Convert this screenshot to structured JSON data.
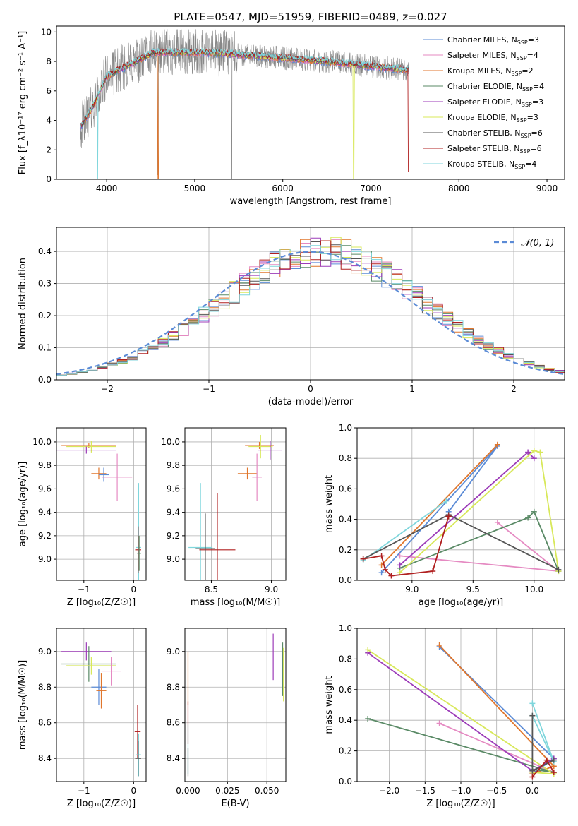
{
  "chart_data": [
    {
      "type": "line",
      "title": "PLATE=0547, MJD=51959, FIBERID=0489, z=0.027",
      "xlabel": "wavelength [Angstrom, rest frame]",
      "ylabel": "Flux [f_λ10⁻¹⁷ erg cm⁻² s⁻¹ A⁻¹]",
      "xlim": [
        3430,
        9200
      ],
      "ylim": [
        0,
        10.4
      ],
      "xticks": [
        "4000",
        "5000",
        "6000",
        "7000",
        "8000",
        "9000"
      ],
      "yticks": [
        "0",
        "2",
        "4",
        "6",
        "8",
        "10"
      ],
      "data_range": [
        3700,
        7430
      ],
      "grid": false,
      "legend_position": "upper-right",
      "series": [
        {
          "name": "Chabrier MILES, N_SSP=3",
          "color": "#5b8bd6"
        },
        {
          "name": "Salpeter MILES, N_SSP=4",
          "color": "#e58ac2"
        },
        {
          "name": "Kroupa MILES, N_SSP=2",
          "color": "#e0762c"
        },
        {
          "name": "Chabrier ELODIE, N_SSP=4",
          "color": "#5a8a66"
        },
        {
          "name": "Salpeter ELODIE, N_SSP=3",
          "color": "#9c3bb8"
        },
        {
          "name": "Kroupa ELODIE, N_SSP=3",
          "color": "#d8e85a"
        },
        {
          "name": "Chabrier STELIB, N_SSP=6",
          "color": "#555555"
        },
        {
          "name": "Salpeter STELIB, N_SSP=6",
          "color": "#b02020"
        },
        {
          "name": "Kroupa STELIB, N_SSP=4",
          "color": "#7fd6dc"
        }
      ]
    },
    {
      "type": "line",
      "xlabel": "(data-model)/error",
      "ylabel": "Normed distribution",
      "xlim": [
        -2.5,
        2.5
      ],
      "ylim": [
        0,
        0.475
      ],
      "xticks": [
        "−2",
        "−1",
        "0",
        "1",
        "2"
      ],
      "yticks": [
        "0.0",
        "0.1",
        "0.2",
        "0.3",
        "0.4"
      ],
      "grid": true,
      "legend_position": "upper-right",
      "reference_curve": {
        "label": "𝒩(0, 1)",
        "mean": 0,
        "sigma": 1,
        "style": "dashed",
        "color": "#5b8bd6"
      },
      "histogram_bin_width": 0.1
    },
    {
      "type": "scatter",
      "xlabel": "Z [log₁₀(Z/Z☉)]",
      "ylabel": "age  [log₁₀(age/yr)]",
      "xlim": [
        -1.55,
        0.25
      ],
      "ylim": [
        8.82,
        10.12
      ],
      "xticks": [
        "−1",
        "0"
      ],
      "yticks": [
        "9.0",
        "9.2",
        "9.4",
        "9.6",
        "9.8",
        "10.0"
      ],
      "grid": true,
      "error_bars": [
        {
          "x": -0.9,
          "y": 9.97,
          "xerr": 0.55,
          "yerr": 0.02,
          "color": "#e0762c"
        },
        {
          "x": -0.85,
          "y": 9.96,
          "xerr": 0.5,
          "yerr": 0.05,
          "color": "#d8e85a"
        },
        {
          "x": -0.95,
          "y": 9.93,
          "xerr": 0.6,
          "yerr": 0.03,
          "color": "#9c3bb8"
        },
        {
          "x": -0.7,
          "y": 9.73,
          "xerr": 0.15,
          "yerr": 0.05,
          "color": "#e0762c"
        },
        {
          "x": -0.6,
          "y": 9.72,
          "xerr": 0.1,
          "yerr": 0.06,
          "color": "#5b8bd6"
        },
        {
          "x": -0.33,
          "y": 9.7,
          "xerr": 0.3,
          "yerr": 0.2,
          "color": "#e58ac2"
        },
        {
          "x": 0.1,
          "y": 9.1,
          "xerr": 0.05,
          "yerr": 0.55,
          "color": "#7fd6dc"
        },
        {
          "x": 0.09,
          "y": 9.08,
          "xerr": 0.06,
          "yerr": 0.2,
          "color": "#b02020"
        },
        {
          "x": 0.11,
          "y": 9.05,
          "xerr": 0.04,
          "yerr": 0.15,
          "color": "#5a8a66"
        }
      ]
    },
    {
      "type": "scatter",
      "xlabel": "mass [log₁₀(M/M☉)]",
      "ylabel": "",
      "xlim": [
        8.28,
        9.12
      ],
      "ylim": [
        8.82,
        10.12
      ],
      "xticks": [
        "8.5",
        "9.0"
      ],
      "yticks": [
        "9.0",
        "9.2",
        "9.4",
        "9.6",
        "9.8",
        "10.0"
      ],
      "grid": true,
      "error_bars": [
        {
          "x": 8.9,
          "y": 9.97,
          "xerr": 0.12,
          "yerr": 0.03,
          "color": "#e0762c"
        },
        {
          "x": 8.91,
          "y": 9.96,
          "xerr": 0.1,
          "yerr": 0.1,
          "color": "#d8e85a"
        },
        {
          "x": 8.99,
          "y": 9.93,
          "xerr": 0.1,
          "yerr": 0.08,
          "color": "#9c3bb8"
        },
        {
          "x": 8.8,
          "y": 9.73,
          "xerr": 0.08,
          "yerr": 0.05,
          "color": "#e0762c"
        },
        {
          "x": 8.88,
          "y": 9.7,
          "xerr": 0.04,
          "yerr": 0.2,
          "color": "#e58ac2"
        },
        {
          "x": 8.41,
          "y": 9.1,
          "xerr": 0.1,
          "yerr": 0.55,
          "color": "#7fd6dc"
        },
        {
          "x": 8.55,
          "y": 9.08,
          "xerr": 0.15,
          "yerr": 0.48,
          "color": "#b02020"
        },
        {
          "x": 8.45,
          "y": 9.09,
          "xerr": 0.08,
          "yerr": 0.3,
          "color": "#555555"
        }
      ]
    },
    {
      "type": "line",
      "xlabel": "age  [log₁₀(age/yr)]",
      "ylabel": "mass weight",
      "xlim": [
        8.55,
        10.25
      ],
      "ylim": [
        0,
        1.0
      ],
      "xticks": [
        "9.0",
        "9.5",
        "10.0"
      ],
      "yticks": [
        "0.0",
        "0.2",
        "0.4",
        "0.6",
        "0.8",
        "1.0"
      ],
      "grid": true,
      "series": [
        {
          "color": "#5b8bd6",
          "x": [
            9.3,
            9.7,
            8.75
          ],
          "y": [
            0.45,
            0.88,
            0.05
          ]
        },
        {
          "color": "#e0762c",
          "x": [
            8.75,
            9.7
          ],
          "y": [
            0.1,
            0.89
          ]
        },
        {
          "color": "#e58ac2",
          "x": [
            9.7,
            10.2,
            8.9
          ],
          "y": [
            0.38,
            0.06,
            0.16
          ]
        },
        {
          "color": "#5a8a66",
          "x": [
            8.9,
            9.95,
            10.0,
            10.2
          ],
          "y": [
            0.08,
            0.41,
            0.45,
            0.06
          ]
        },
        {
          "color": "#9c3bb8",
          "x": [
            8.9,
            9.95,
            10.0
          ],
          "y": [
            0.1,
            0.84,
            0.8
          ]
        },
        {
          "color": "#d8e85a",
          "x": [
            8.9,
            10.0,
            10.05,
            10.2
          ],
          "y": [
            0.05,
            0.85,
            0.84,
            0.06
          ]
        },
        {
          "color": "#7fd6dc",
          "x": [
            8.6,
            9.28
          ],
          "y": [
            0.13,
            0.52
          ]
        },
        {
          "color": "#555555",
          "x": [
            8.6,
            9.3,
            10.2
          ],
          "y": [
            0.14,
            0.43,
            0.07
          ]
        },
        {
          "color": "#b02020",
          "x": [
            8.6,
            8.75,
            8.78,
            8.83,
            9.17,
            9.3
          ],
          "y": [
            0.14,
            0.16,
            0.07,
            0.03,
            0.06,
            0.42
          ]
        }
      ]
    },
    {
      "type": "scatter",
      "xlabel": "Z [log₁₀(Z/Z☉)]",
      "ylabel": "mass [log₁₀(M/M☉)]",
      "xlim": [
        -1.55,
        0.25
      ],
      "ylim": [
        8.27,
        9.13
      ],
      "xticks": [
        "−1",
        "0"
      ],
      "yticks": [
        "8.4",
        "8.6",
        "8.8",
        "9.0"
      ],
      "grid": true,
      "error_bars": [
        {
          "x": -0.95,
          "y": 9.0,
          "xerr": 0.5,
          "yerr": 0.05,
          "color": "#9c3bb8"
        },
        {
          "x": -0.9,
          "y": 8.93,
          "xerr": 0.55,
          "yerr": 0.1,
          "color": "#5a8a66"
        },
        {
          "x": -0.85,
          "y": 8.92,
          "xerr": 0.5,
          "yerr": 0.05,
          "color": "#d8e85a"
        },
        {
          "x": -0.45,
          "y": 8.89,
          "xerr": 0.2,
          "yerr": 0.08,
          "color": "#e58ac2"
        },
        {
          "x": -0.7,
          "y": 8.8,
          "xerr": 0.15,
          "yerr": 0.1,
          "color": "#5b8bd6"
        },
        {
          "x": -0.65,
          "y": 8.78,
          "xerr": 0.1,
          "yerr": 0.1,
          "color": "#e0762c"
        },
        {
          "x": 0.08,
          "y": 8.55,
          "xerr": 0.06,
          "yerr": 0.15,
          "color": "#b02020"
        },
        {
          "x": 0.1,
          "y": 8.42,
          "xerr": 0.05,
          "yerr": 0.12,
          "color": "#7fd6dc"
        },
        {
          "x": 0.09,
          "y": 8.4,
          "xerr": 0.06,
          "yerr": 0.1,
          "color": "#555555"
        }
      ]
    },
    {
      "type": "scatter",
      "xlabel": "E(B-V)",
      "ylabel": "",
      "xlim": [
        -0.002,
        0.062
      ],
      "ylim": [
        8.27,
        9.13
      ],
      "xticks": [
        "0.000",
        "0.025",
        "0.050"
      ],
      "yticks": [
        "8.4",
        "8.6",
        "8.8",
        "9.0"
      ],
      "grid": true,
      "error_bars": [
        {
          "x": 0.0,
          "y": 8.85,
          "xerr": 0,
          "yerr": 0.15,
          "color": "#e0762c"
        },
        {
          "x": 0.0,
          "y": 8.6,
          "xerr": 0,
          "yerr": 0.12,
          "color": "#b02020"
        },
        {
          "x": 0.0,
          "y": 8.45,
          "xerr": 0,
          "yerr": 0.14,
          "color": "#7fd6dc"
        },
        {
          "x": 0.0,
          "y": 8.38,
          "xerr": 0,
          "yerr": 0.08,
          "color": "#555555"
        },
        {
          "x": 0.054,
          "y": 8.97,
          "xerr": 0,
          "yerr": 0.13,
          "color": "#9c3bb8"
        },
        {
          "x": 0.06,
          "y": 8.9,
          "xerr": 0,
          "yerr": 0.15,
          "color": "#5a8a66"
        },
        {
          "x": 0.0605,
          "y": 8.87,
          "xerr": 0,
          "yerr": 0.15,
          "color": "#d8e85a"
        }
      ]
    },
    {
      "type": "line",
      "xlabel": "Z [log₁₀(Z/Z☉)]",
      "ylabel": "mass weight",
      "xlim": [
        -2.45,
        0.45
      ],
      "ylim": [
        0,
        1.0
      ],
      "xticks": [
        "−2.0",
        "−1.5",
        "−1.0",
        "−0.5",
        "0.0"
      ],
      "yticks": [
        "0.0",
        "0.2",
        "0.4",
        "0.6",
        "0.8",
        "1.0"
      ],
      "grid": true,
      "series": [
        {
          "color": "#5b8bd6",
          "x": [
            -1.3,
            0.3,
            0.0
          ],
          "y": [
            0.88,
            0.15,
            0.05
          ]
        },
        {
          "color": "#e0762c",
          "x": [
            -1.3,
            0.3,
            0.0
          ],
          "y": [
            0.89,
            0.1,
            0.05
          ]
        },
        {
          "color": "#e58ac2",
          "x": [
            -1.3,
            0.3
          ],
          "y": [
            0.38,
            0.06
          ]
        },
        {
          "color": "#5a8a66",
          "x": [
            -2.3,
            0.3,
            0.0
          ],
          "y": [
            0.41,
            0.06,
            0.08
          ]
        },
        {
          "color": "#9c3bb8",
          "x": [
            -2.3,
            0.0,
            0.3
          ],
          "y": [
            0.84,
            0.07,
            0.15
          ]
        },
        {
          "color": "#d8e85a",
          "x": [
            -2.3,
            0.3,
            0.0
          ],
          "y": [
            0.86,
            0.05,
            0.06
          ]
        },
        {
          "color": "#7fd6dc",
          "x": [
            0.0,
            0.3,
            0.0
          ],
          "y": [
            0.51,
            0.13,
            0.43
          ]
        },
        {
          "color": "#555555",
          "x": [
            0.0,
            0.0,
            0.3
          ],
          "y": [
            0.43,
            0.07,
            0.14
          ]
        },
        {
          "color": "#b02020",
          "x": [
            0.0,
            0.2,
            0.3
          ],
          "y": [
            0.03,
            0.14,
            0.06
          ]
        }
      ]
    }
  ]
}
